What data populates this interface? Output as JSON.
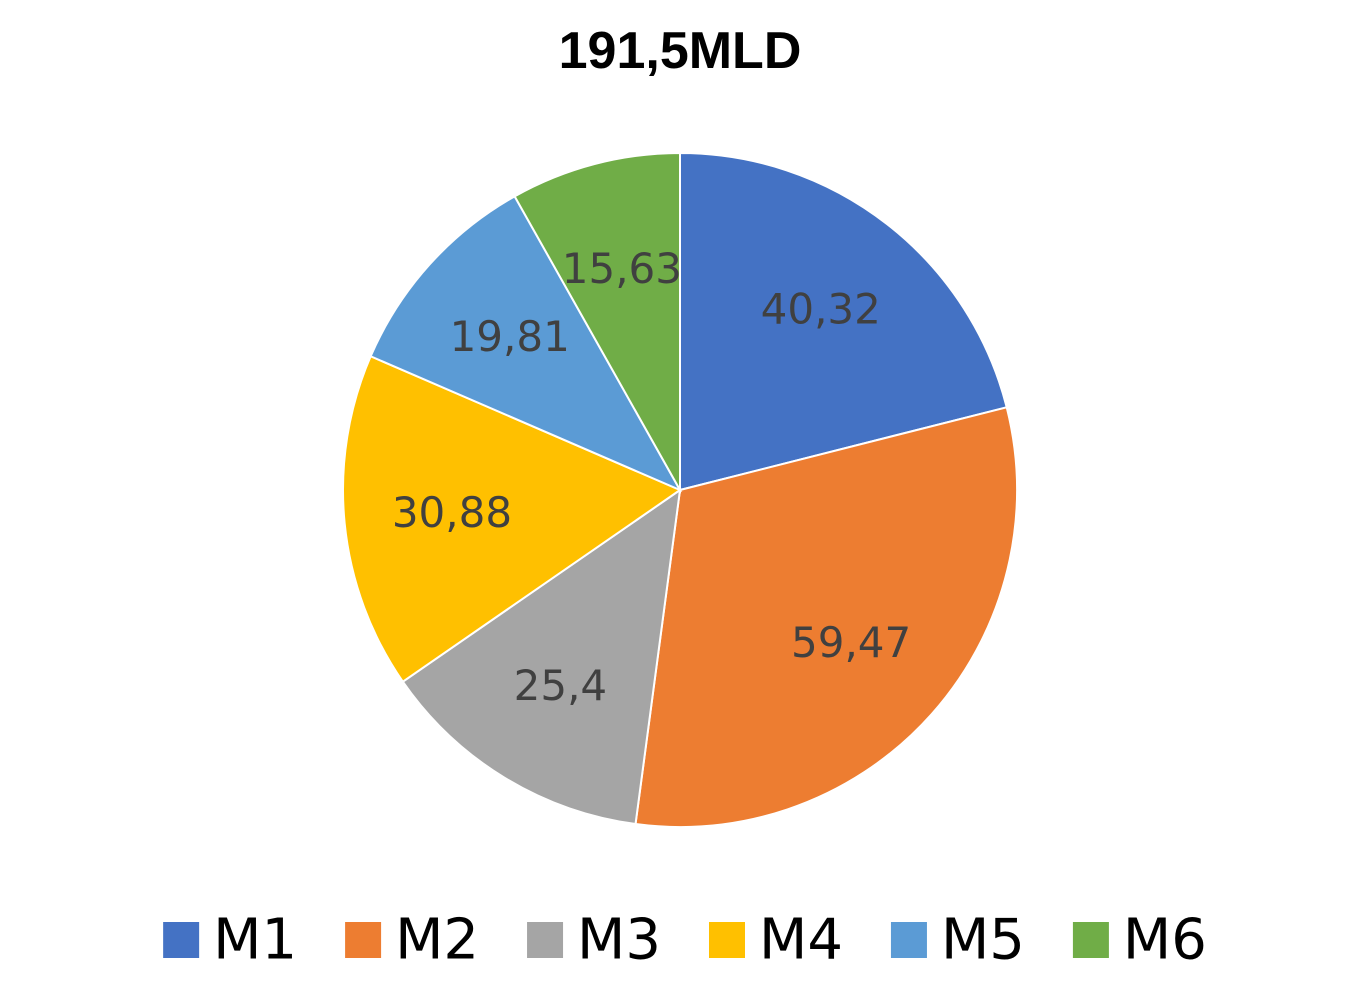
{
  "chart_data": {
    "type": "pie",
    "title": "191,5MLD",
    "start_angle_deg": 0,
    "direction": "clockwise",
    "legend_position": "bottom",
    "slices": [
      {
        "label": "M1",
        "value": 40.32,
        "value_label": "40,32",
        "color": "#4472C4"
      },
      {
        "label": "M2",
        "value": 59.47,
        "value_label": "59,47",
        "color": "#ED7D31"
      },
      {
        "label": "M3",
        "value": 25.4,
        "value_label": "25,4",
        "color": "#A5A5A5"
      },
      {
        "label": "M4",
        "value": 30.88,
        "value_label": "30,88",
        "color": "#FFC000"
      },
      {
        "label": "M5",
        "value": 19.81,
        "value_label": "19,81",
        "color": "#5B9BD5"
      },
      {
        "label": "M6",
        "value": 15.63,
        "value_label": "15,63",
        "color": "#70AD47"
      }
    ]
  }
}
